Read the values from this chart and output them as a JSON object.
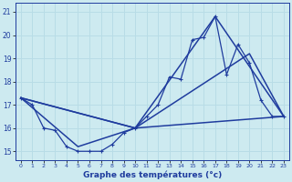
{
  "title": "Graphe des températures (°c)",
  "bg_color": "#cdeaf0",
  "grid_color": "#b8dce6",
  "line_color": "#1f3c9e",
  "xlim": [
    -0.5,
    23.5
  ],
  "ylim": [
    14.6,
    21.4
  ],
  "yticks": [
    15,
    16,
    17,
    18,
    19,
    20,
    21
  ],
  "xticks": [
    0,
    1,
    2,
    3,
    4,
    5,
    6,
    7,
    8,
    9,
    10,
    11,
    12,
    13,
    14,
    15,
    16,
    17,
    18,
    19,
    20,
    21,
    22,
    23
  ],
  "series1_x": [
    0,
    1,
    2,
    3,
    4,
    5,
    6,
    7,
    8,
    9,
    10,
    11,
    12,
    13,
    14,
    15,
    16,
    17,
    18,
    19,
    20,
    21,
    22,
    23
  ],
  "series1_y": [
    17.3,
    17.0,
    16.0,
    15.9,
    15.2,
    15.0,
    15.0,
    15.0,
    15.3,
    15.8,
    16.0,
    16.5,
    17.0,
    18.2,
    18.1,
    19.8,
    19.9,
    20.8,
    18.3,
    19.6,
    18.8,
    17.2,
    16.5,
    16.5
  ],
  "series2_x": [
    0,
    10,
    23
  ],
  "series2_y": [
    17.3,
    16.0,
    16.5
  ],
  "series3_x": [
    0,
    5,
    10,
    17,
    23
  ],
  "series3_y": [
    17.3,
    15.2,
    16.0,
    20.8,
    16.5
  ],
  "series4_x": [
    0,
    10,
    20,
    23
  ],
  "series4_y": [
    17.3,
    16.0,
    19.2,
    16.5
  ]
}
